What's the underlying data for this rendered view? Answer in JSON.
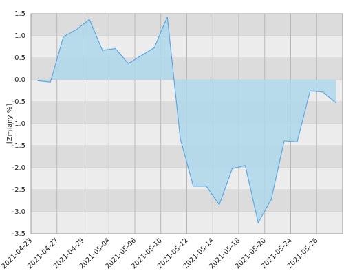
{
  "chart_data": {
    "type": "area",
    "y_label": "[Zmiany %]",
    "categories": [
      "2021-04-23",
      null,
      "2021-04-27",
      null,
      "2021-04-29",
      null,
      "2021-05-04",
      null,
      "2021-05-06",
      null,
      "2021-05-10",
      null,
      "2021-05-12",
      null,
      "2021-05-14",
      null,
      "2021-05-18",
      null,
      "2021-05-20",
      null,
      "2021-05-24",
      null,
      "2021-05-26",
      null
    ],
    "values": [
      -0.02,
      -0.05,
      0.98,
      1.14,
      1.37,
      0.67,
      0.71,
      0.37,
      0.55,
      0.73,
      1.43,
      -1.34,
      -2.42,
      -2.42,
      -2.84,
      -2.02,
      -1.95,
      -3.25,
      -2.72,
      -1.39,
      -1.41,
      -0.25,
      -0.28,
      -0.53
    ],
    "color": "#5aa9e6",
    "fill": "#aed8ea",
    "ylim": [
      -3.5,
      1.5
    ],
    "yticks": [
      {
        "value": -3.5,
        "label": "-3.5"
      },
      {
        "value": -3,
        "label": "-3.0"
      },
      {
        "value": -2.5,
        "label": "-2.5"
      },
      {
        "value": -2,
        "label": "-2.0"
      },
      {
        "value": -1.5,
        "label": "-1.5"
      },
      {
        "value": -1,
        "label": "-1.0"
      },
      {
        "value": -0.5,
        "label": "-0.5"
      },
      {
        "value": 0,
        "label": "0.0"
      },
      {
        "value": 0.5,
        "label": "0.5"
      },
      {
        "value": 1,
        "label": "1.0"
      },
      {
        "value": 1.5,
        "label": "1.5"
      }
    ],
    "grid": true
  }
}
